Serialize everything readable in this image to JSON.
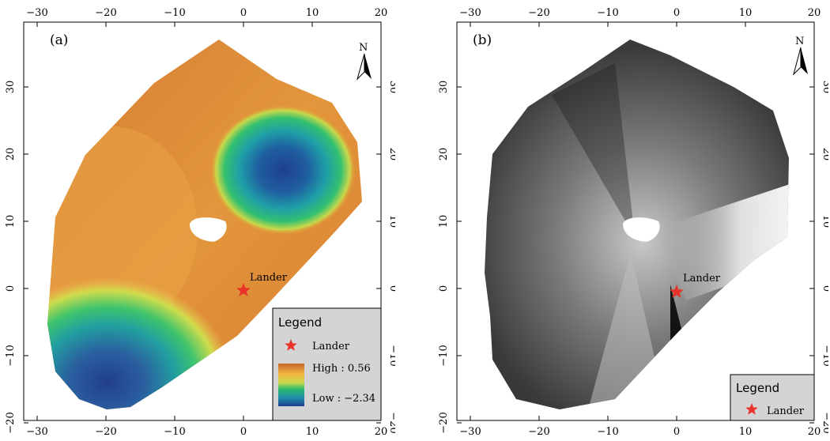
{
  "panels": [
    {
      "id": "a",
      "label": "(a)",
      "north_label": "N",
      "style": "elevation-colormap",
      "x_ticks": [
        "−30",
        "−20",
        "−10",
        "0",
        "10",
        "20"
      ],
      "y_ticks": [
        "30",
        "20",
        "10",
        "0",
        "−10",
        "−20"
      ],
      "lander_label": "Lander",
      "legend": {
        "title": "Legend",
        "lander": "Lander",
        "high": "High : 0.56",
        "low": "Low : −2.34"
      }
    },
    {
      "id": "b",
      "label": "(b)",
      "north_label": "N",
      "style": "grayscale-image",
      "x_ticks": [
        "−30",
        "−20",
        "−10",
        "0",
        "10",
        "20"
      ],
      "y_ticks": [
        "30",
        "20",
        "10",
        "0",
        "−10",
        "−20"
      ],
      "lander_label": "Lander",
      "legend": {
        "title": "Legend",
        "lander": "Lander"
      }
    }
  ],
  "colors": {
    "lander_star": "#e8322a",
    "legend_bg": "#d4d4d4",
    "colormap": [
      "#1f3f8f",
      "#1f8fa8",
      "#2cba70",
      "#c8d84a",
      "#f2b640",
      "#dd7d2a",
      "#c9662a"
    ]
  }
}
